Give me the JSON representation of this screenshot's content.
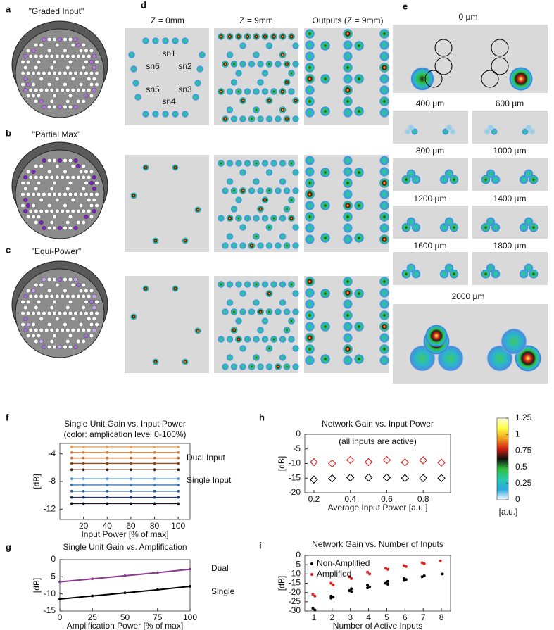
{
  "figure": {
    "panel_labels": [
      "a",
      "b",
      "c",
      "d",
      "e",
      "f",
      "g",
      "h",
      "i"
    ],
    "fiber_titles": [
      "\"Graded Input\"",
      "\"Partial Max\"",
      "\"Equi-Power\""
    ],
    "column_titles": [
      "Z = 0mm",
      "Z = 9mm",
      "Outputs (Z = 9mm)"
    ],
    "subnetwork_labels": [
      "sn1",
      "sn2",
      "sn3",
      "sn4",
      "sn5",
      "sn6"
    ],
    "propagation_labels": [
      "0 μm",
      "400 μm",
      "600 μm",
      "800 μm",
      "1000 μm",
      "1200 μm",
      "1400 μm",
      "1600 μm",
      "1800 μm",
      "2000 μm"
    ]
  },
  "chart_data": [
    {
      "type": "line",
      "title": "Single Unit Gain vs. Input Power",
      "subtitle": "(color: amplication level 0-100%)",
      "xlabel": "Input Power [% of max]",
      "ylabel": "[dB]",
      "x": [
        10,
        20,
        40,
        60,
        80,
        100
      ],
      "series": [
        {
          "color": "#f0a050",
          "values": [
            -3.0,
            -3.0,
            -3.0,
            -3.0,
            -3.0,
            -3.0
          ]
        },
        {
          "color": "#d9823a",
          "values": [
            -3.8,
            -3.8,
            -3.8,
            -3.8,
            -3.8,
            -3.8
          ]
        },
        {
          "color": "#b9652b",
          "values": [
            -4.6,
            -4.6,
            -4.6,
            -4.6,
            -4.6,
            -4.6
          ]
        },
        {
          "color": "#8f4b22",
          "values": [
            -5.4,
            -5.4,
            -5.4,
            -5.4,
            -5.4,
            -5.4
          ]
        },
        {
          "color": "#3a2216",
          "values": [
            -6.3,
            -6.3,
            -6.3,
            -6.3,
            -6.3,
            -6.3
          ]
        },
        {
          "color": "#5aa0e0",
          "values": [
            -7.6,
            -7.6,
            -7.6,
            -7.6,
            -7.6,
            -7.6
          ]
        },
        {
          "color": "#3a7cc0",
          "values": [
            -8.5,
            -8.5,
            -8.5,
            -8.5,
            -8.5,
            -8.5
          ]
        },
        {
          "color": "#2a5a96",
          "values": [
            -9.4,
            -9.4,
            -9.4,
            -9.4,
            -9.4,
            -9.4
          ]
        },
        {
          "color": "#1c3a66",
          "values": [
            -10.3,
            -10.3,
            -10.3,
            -10.3,
            -10.3,
            -10.3
          ]
        },
        {
          "color": "#101820",
          "values": [
            -11.2,
            -11.2,
            -11.2,
            -11.2,
            -11.2,
            -11.2
          ]
        }
      ],
      "xlim": [
        0,
        110
      ],
      "xticks": [
        20,
        40,
        60,
        80,
        100
      ],
      "ylim": [
        -13.5,
        -2.5
      ],
      "yticks": [
        -12,
        -8,
        -4
      ],
      "markers": true,
      "annotations": [
        "Dual Input",
        "Single Input"
      ]
    },
    {
      "type": "line",
      "title": "Single Unit Gain  vs. Amplification",
      "xlabel": "Amplification Power [% of max]",
      "ylabel": "[dB]",
      "x": [
        0,
        25,
        50,
        75,
        100
      ],
      "series": [
        {
          "color": "#8a3a8c",
          "values": [
            -6.5,
            -5.6,
            -4.7,
            -3.8,
            -2.8
          ]
        },
        {
          "color": "#000000",
          "values": [
            -11.5,
            -10.6,
            -9.7,
            -8.8,
            -7.8
          ]
        }
      ],
      "xlim": [
        0,
        100
      ],
      "xticks": [
        0,
        25,
        50,
        75,
        100
      ],
      "ylim": [
        -15,
        0
      ],
      "yticks": [
        -15,
        -10,
        -5,
        0
      ],
      "markers": true,
      "annotations": [
        "Dual",
        "Single"
      ]
    },
    {
      "type": "scatter",
      "title": "Network Gain vs. Input Power",
      "subtitle": "(all inputs are active)",
      "xlabel": "Average Input Power [a.u.]",
      "ylabel": "[dB]",
      "x": [
        0.2,
        0.3,
        0.4,
        0.5,
        0.6,
        0.7,
        0.8,
        0.9
      ],
      "series": [
        {
          "color": "#e02020",
          "values": [
            -9.5,
            -10,
            -8.8,
            -9.5,
            -8.8,
            -9.6,
            -8.9,
            -9.7
          ]
        },
        {
          "color": "#000000",
          "values": [
            -15.5,
            -15.1,
            -14.8,
            -14.8,
            -14.8,
            -15,
            -15,
            -15
          ]
        }
      ],
      "xlim": [
        0.15,
        0.95
      ],
      "xticks": [
        0.2,
        0.4,
        0.6,
        0.8
      ],
      "ylim": [
        -20,
        0
      ],
      "yticks": [
        -20,
        -15,
        -10,
        -5,
        0
      ],
      "marker": "diamond"
    },
    {
      "type": "scatter",
      "title": "Network Gain vs. Number of Inputs",
      "xlabel": "Number of Active Inputs",
      "ylabel": "[dB]",
      "series": [
        {
          "name": "Non-Amplified",
          "color": "#000000",
          "x": [
            1,
            1,
            2,
            2,
            2,
            3,
            3,
            3,
            4,
            4,
            4,
            5,
            5,
            5,
            6,
            6,
            6,
            7,
            7,
            8
          ],
          "values": [
            -28.5,
            -29.5,
            -22,
            -22.5,
            -23,
            -18,
            -19,
            -19.5,
            -16,
            -17,
            -17.5,
            -14,
            -15,
            -15.5,
            -12.5,
            -13,
            -13.5,
            -11,
            -11.5,
            -10
          ]
        },
        {
          "name": "Amplified",
          "color": "#e02020",
          "x": [
            1,
            1,
            2,
            2,
            3,
            3,
            4,
            4,
            5,
            5,
            6,
            6,
            7,
            7,
            8
          ],
          "values": [
            -21,
            -22,
            -15,
            -16,
            -11.5,
            -12.5,
            -9,
            -10,
            -7,
            -7.5,
            -5.5,
            -6,
            -4,
            -4.5,
            -3
          ]
        }
      ],
      "xlim": [
        0.5,
        8.5
      ],
      "xticks": [
        1,
        2,
        3,
        4,
        5,
        6,
        7,
        8
      ],
      "ylim": [
        -30,
        0
      ],
      "yticks": [
        -30,
        -25,
        -20,
        -15,
        -10,
        -5,
        0
      ],
      "marker": "dot",
      "legend": "upper left"
    },
    {
      "type": "colorbar",
      "label": "[a.u.]",
      "ylim": [
        0,
        1.25
      ],
      "yticks": [
        0,
        0.25,
        0.5,
        0.75,
        1,
        1.25
      ],
      "colors": [
        "#ffffff",
        "#2aa8e0",
        "#28c8b0",
        "#30c040",
        "#101010",
        "#d02010",
        "#f0a020",
        "#ffff40",
        "#ffffe0"
      ]
    }
  ]
}
